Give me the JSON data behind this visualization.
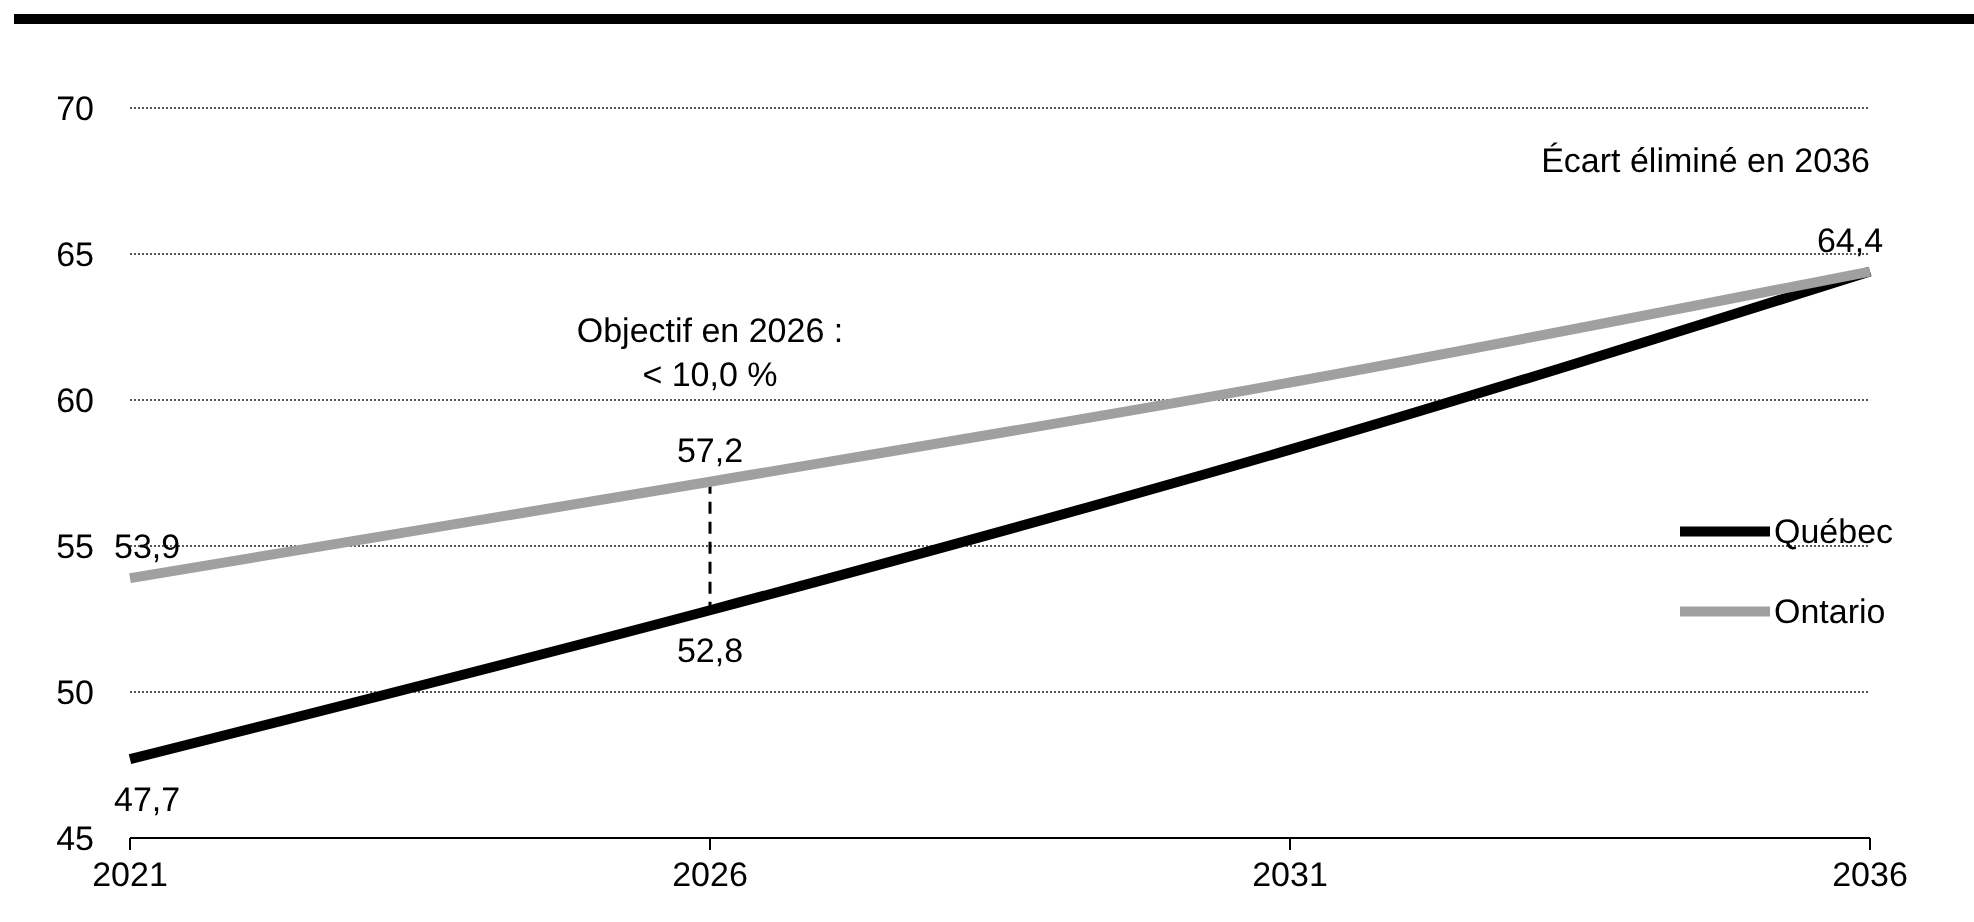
{
  "chart_data": {
    "type": "line",
    "x": [
      2021,
      2026,
      2031,
      2036
    ],
    "xlim": [
      2021,
      2036
    ],
    "xticks": [
      2021,
      2026,
      2031,
      2036
    ],
    "ylim": [
      45,
      70
    ],
    "yticks": [
      45,
      50,
      55,
      60,
      65,
      70
    ],
    "grid": "y",
    "legend": "right",
    "line_style": "solid",
    "marker": "none",
    "series": [
      {
        "name": "Québec",
        "color": "#000000",
        "values": [
          47.7,
          52.8,
          58.3,
          64.4
        ],
        "value_labels": [
          "47,7",
          "52,8",
          null,
          null
        ]
      },
      {
        "name": "Ontario",
        "color": "#a0a0a0",
        "values": [
          53.9,
          57.2,
          60.6,
          64.4
        ],
        "value_labels": [
          "53,9",
          "57,2",
          null,
          "64,4"
        ]
      }
    ],
    "annotations": [
      "Objectif en 2026 :\n< 10,0 %",
      "Écart éliminé en 2036"
    ]
  }
}
